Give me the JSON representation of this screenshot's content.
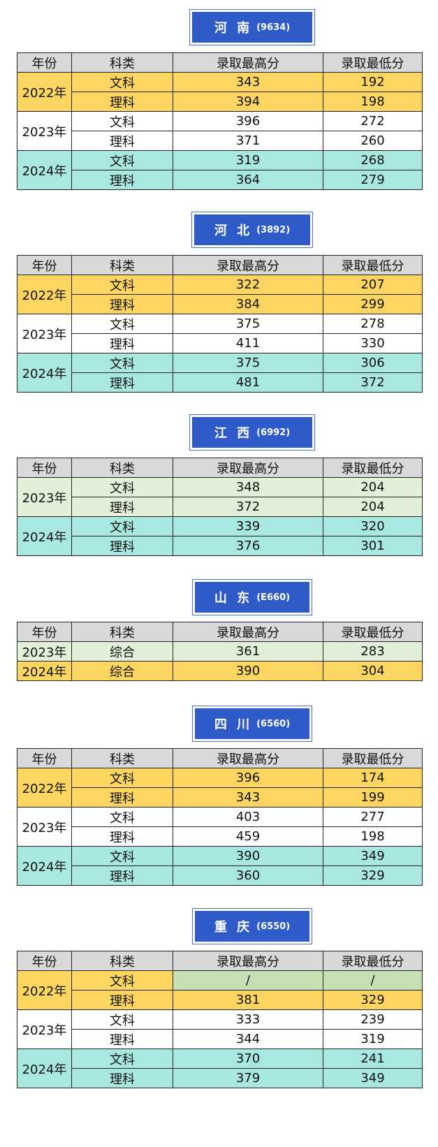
{
  "headers": {
    "year": "年份",
    "type": "科类",
    "max": "录取最高分",
    "min": "录取最低分"
  },
  "sections": [
    {
      "province": "河 南",
      "code": "(9634)",
      "rows": [
        {
          "year": "2022年",
          "type": "文科",
          "max": "343",
          "min": "192"
        },
        {
          "year": "",
          "type": "理科",
          "max": "394",
          "min": "198"
        },
        {
          "year": "2023年",
          "type": "文科",
          "max": "396",
          "min": "272"
        },
        {
          "year": "",
          "type": "理科",
          "max": "371",
          "min": "260"
        },
        {
          "year": "2024年",
          "type": "文科",
          "max": "319",
          "min": "268"
        },
        {
          "year": "",
          "type": "理科",
          "max": "364",
          "min": "279"
        }
      ]
    },
    {
      "province": "河 北",
      "code": "(3892)",
      "rows": [
        {
          "year": "2022年",
          "type": "文科",
          "max": "322",
          "min": "207"
        },
        {
          "year": "",
          "type": "理科",
          "max": "384",
          "min": "299"
        },
        {
          "year": "2023年",
          "type": "文科",
          "max": "375",
          "min": "278"
        },
        {
          "year": "",
          "type": "理科",
          "max": "411",
          "min": "330"
        },
        {
          "year": "2024年",
          "type": "文科",
          "max": "375",
          "min": "306"
        },
        {
          "year": "",
          "type": "理科",
          "max": "481",
          "min": "372"
        }
      ]
    },
    {
      "province": "江 西",
      "code": "(6992)",
      "rows": [
        {
          "year": "2023年",
          "type": "文科",
          "max": "348",
          "min": "204"
        },
        {
          "year": "",
          "type": "理科",
          "max": "372",
          "min": "204"
        },
        {
          "year": "2024年",
          "type": "文科",
          "max": "339",
          "min": "320"
        },
        {
          "year": "",
          "type": "理科",
          "max": "376",
          "min": "301"
        }
      ]
    },
    {
      "province": "山 东",
      "code": "(E660)",
      "rows": [
        {
          "year": "2023年",
          "type": "综合",
          "max": "361",
          "min": "283"
        },
        {
          "year": "2024年",
          "type": "综合",
          "max": "390",
          "min": "304"
        }
      ]
    },
    {
      "province": "四 川",
      "code": "(6560)",
      "rows": [
        {
          "year": "2022年",
          "type": "文科",
          "max": "396",
          "min": "174"
        },
        {
          "year": "",
          "type": "理科",
          "max": "343",
          "min": "199"
        },
        {
          "year": "2023年",
          "type": "文科",
          "max": "403",
          "min": "277"
        },
        {
          "year": "",
          "type": "理科",
          "max": "459",
          "min": "198"
        },
        {
          "year": "2024年",
          "type": "文科",
          "max": "390",
          "min": "349"
        },
        {
          "year": "",
          "type": "理科",
          "max": "360",
          "min": "329"
        }
      ]
    },
    {
      "province": "重 庆",
      "code": "(6550)",
      "rows": [
        {
          "year": "2022年",
          "type": "文科",
          "max": "/",
          "min": "/"
        },
        {
          "year": "",
          "type": "理科",
          "max": "381",
          "min": "329"
        },
        {
          "year": "2023年",
          "type": "文科",
          "max": "333",
          "min": "239"
        },
        {
          "year": "",
          "type": "理科",
          "max": "344",
          "min": "319"
        },
        {
          "year": "2024年",
          "type": "文科",
          "max": "370",
          "min": "241"
        },
        {
          "year": "",
          "type": "理科",
          "max": "379",
          "min": "349"
        }
      ]
    }
  ],
  "colors": {
    "header": "#d9d9d9",
    "yellow": "#fdd662",
    "teal": "#a8e8e0",
    "light_green": "#e2f0d9",
    "badge": "#2f5bc9"
  }
}
